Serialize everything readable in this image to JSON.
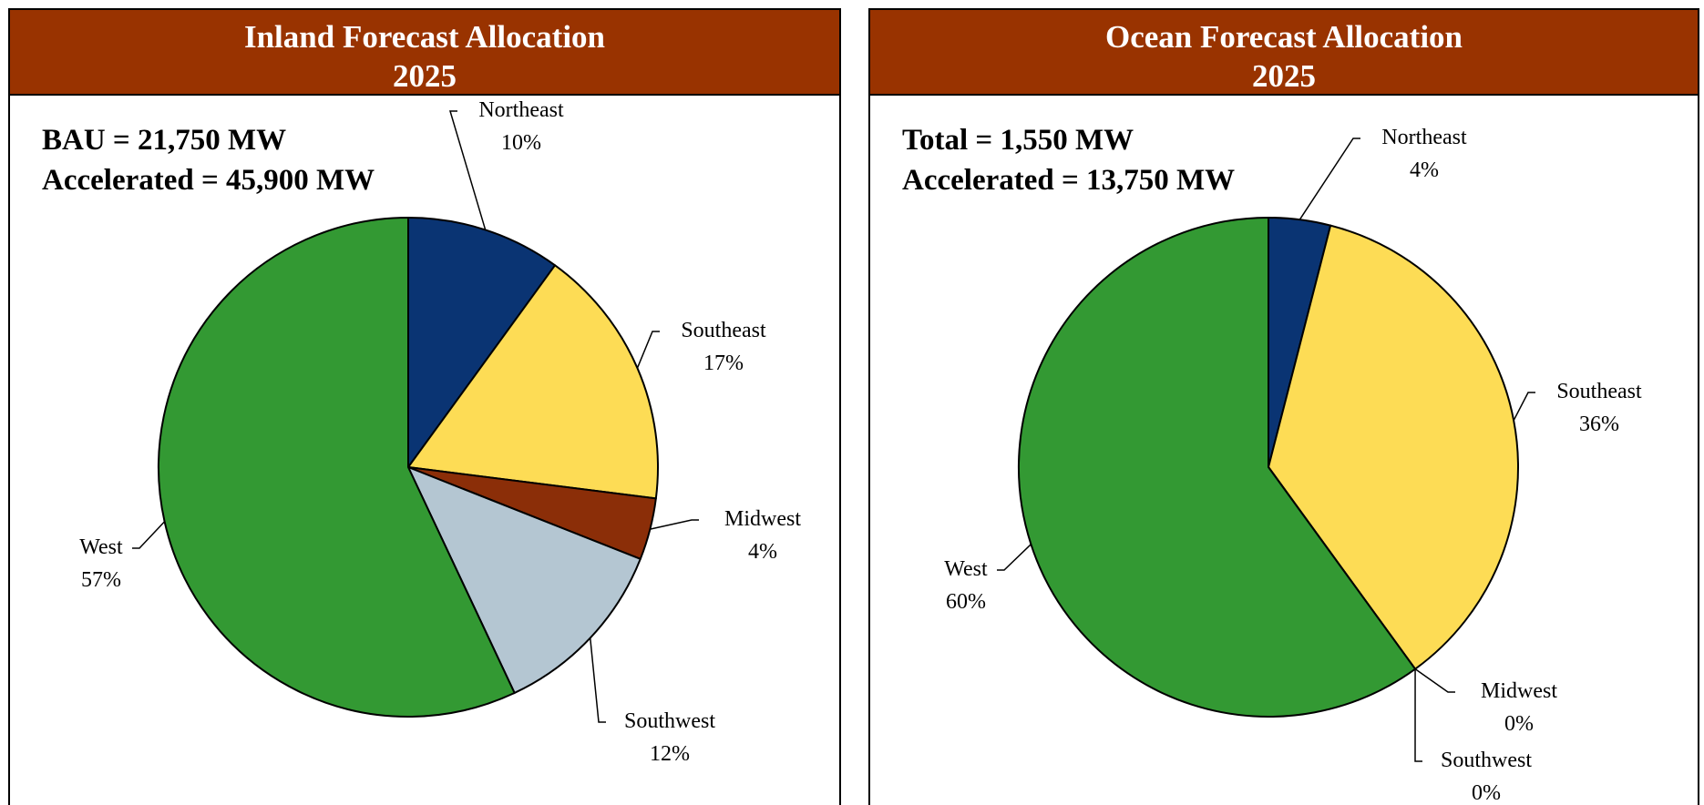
{
  "chart_data": [
    {
      "type": "pie",
      "title": "Inland Forecast Allocation",
      "subtitle": "2025",
      "annotations": [
        "BAU = 21,750 MW",
        "Accelerated = 45,900 MW"
      ],
      "categories": [
        "Northeast",
        "Southeast",
        "Midwest",
        "Southwest",
        "West"
      ],
      "values": [
        10,
        17,
        4,
        12,
        57
      ],
      "value_labels": [
        "10%",
        "17%",
        "4%",
        "12%",
        "57%"
      ],
      "colors": [
        "#0a3473",
        "#fddc55",
        "#8b2e08",
        "#b4c6d2",
        "#339933"
      ]
    },
    {
      "type": "pie",
      "title": "Ocean Forecast Allocation",
      "subtitle": "2025",
      "annotations": [
        "Total = 1,550 MW",
        "Accelerated = 13,750 MW"
      ],
      "categories": [
        "Northeast",
        "Southeast",
        "Midwest",
        "Southwest",
        "West"
      ],
      "values": [
        4,
        36,
        0,
        0,
        60
      ],
      "value_labels": [
        "4%",
        "36%",
        "0%",
        "0%",
        "60%"
      ],
      "colors": [
        "#0a3473",
        "#fddc55",
        "#8b2e08",
        "#b4c6d2",
        "#339933"
      ]
    }
  ]
}
